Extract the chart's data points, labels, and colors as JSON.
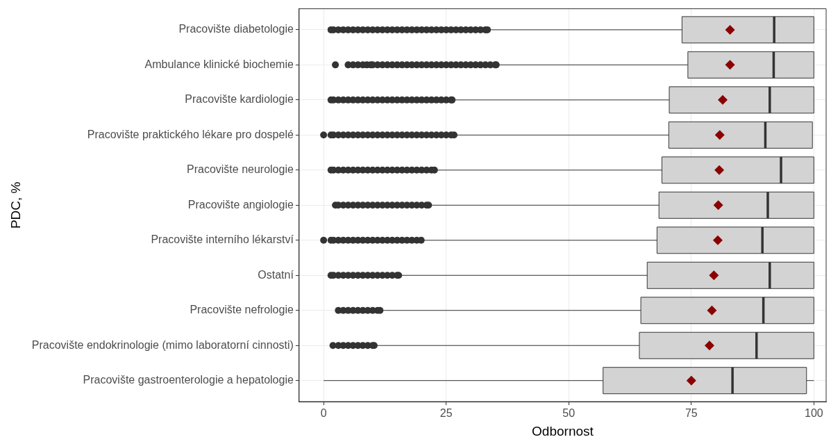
{
  "chart_data": {
    "type": "box",
    "orientation": "horizontal",
    "xlabel": "Odbornost",
    "ylabel": "PDC, %",
    "color": "#d3d3d3",
    "grid": true,
    "categories": [
      "Pracovište diabetologie",
      "Ambulance klinické biochemie",
      "Pracovište kardiologie",
      "Pracovište praktického lékare pro dospelé",
      "Pracovište neurologie",
      "Pracovište angiologie",
      "Pracovište interního lékarství",
      "Ostatní",
      "Pracovište nefrologie",
      "Pracovište endokrinologie (mimo laboratorní cinnosti)",
      "Pracovište gastroenterologie a hepatologie"
    ],
    "xlim": [
      -5,
      102.5
    ],
    "xticks": [
      0,
      25,
      50,
      75,
      100
    ],
    "boxes": [
      {
        "low": 33.8,
        "q1": 73.1,
        "median": 91.9,
        "q3": 100,
        "high": 100,
        "mean": 82.9,
        "outliers": [
          1.5,
          2,
          3,
          4,
          5,
          6,
          7,
          8,
          9,
          10,
          11,
          12,
          13,
          14,
          15,
          16,
          17,
          18,
          19,
          20,
          21,
          22,
          23,
          24,
          25,
          26,
          27,
          28,
          29,
          30,
          31,
          32,
          33,
          33.4
        ]
      },
      {
        "low": 35.5,
        "q1": 74.3,
        "median": 91.8,
        "q3": 100,
        "high": 100,
        "mean": 82.9,
        "outliers": [
          2.4,
          5,
          6,
          7,
          8,
          8.8,
          9.6,
          10,
          11,
          12,
          13,
          14,
          15,
          16,
          17,
          18,
          19,
          20,
          21,
          22,
          23,
          24,
          25,
          26,
          27,
          28,
          29,
          30,
          31,
          32,
          33,
          34,
          35,
          35.2
        ]
      },
      {
        "low": 26.5,
        "q1": 70.5,
        "median": 91.0,
        "q3": 100,
        "high": 100,
        "mean": 81.4,
        "outliers": [
          1.5,
          2,
          3,
          4,
          5,
          6,
          7,
          8,
          9,
          10,
          11,
          12,
          13,
          14,
          15,
          16,
          17,
          18,
          19,
          20,
          21,
          22,
          23,
          24,
          25,
          26,
          26.2
        ]
      },
      {
        "low": 27,
        "q1": 70.4,
        "median": 90.1,
        "q3": 99.7,
        "high": 99.7,
        "mean": 80.8,
        "outliers": [
          0,
          1.5,
          2,
          3,
          4,
          5,
          6,
          7,
          8,
          9,
          10,
          11,
          12,
          13,
          14,
          15,
          16,
          17,
          18,
          19,
          20,
          21,
          22,
          23,
          24,
          25,
          26,
          26.6
        ]
      },
      {
        "low": 23,
        "q1": 69.0,
        "median": 93.3,
        "q3": 100,
        "high": 100,
        "mean": 80.7,
        "outliers": [
          1.5,
          2,
          3,
          4,
          5,
          6,
          7,
          8,
          9,
          10,
          11,
          12,
          13,
          14,
          15,
          16,
          17,
          18,
          19,
          20,
          21,
          22,
          22.6
        ]
      },
      {
        "low": 21.7,
        "q1": 68.4,
        "median": 90.6,
        "q3": 100,
        "high": 100,
        "mean": 80.5,
        "outliers": [
          2.4,
          3,
          4,
          5,
          6,
          7,
          8,
          9,
          10,
          11,
          12,
          13,
          14,
          15,
          16,
          17,
          18,
          19,
          20,
          21,
          21.4
        ]
      },
      {
        "low": 20.2,
        "q1": 68.0,
        "median": 89.5,
        "q3": 100,
        "high": 100,
        "mean": 80.4,
        "outliers": [
          0,
          1.5,
          2,
          3,
          4,
          5,
          6,
          7,
          8,
          9,
          10,
          11,
          12,
          13,
          14,
          15,
          16,
          17,
          18,
          19,
          19.9
        ]
      },
      {
        "low": 15.6,
        "q1": 66.0,
        "median": 91.0,
        "q3": 100,
        "high": 100,
        "mean": 79.6,
        "outliers": [
          1.5,
          2,
          3,
          4,
          5,
          6,
          7,
          8,
          9,
          10,
          11,
          12,
          13,
          14,
          15,
          15.3
        ]
      },
      {
        "low": 11.8,
        "q1": 64.7,
        "median": 89.7,
        "q3": 100,
        "high": 100,
        "mean": 79.2,
        "outliers": [
          3,
          4,
          5,
          6,
          7,
          8,
          9,
          10,
          11,
          11.5
        ]
      },
      {
        "low": 10.6,
        "q1": 64.4,
        "median": 88.3,
        "q3": 100,
        "high": 100,
        "mean": 78.7,
        "outliers": [
          1.9,
          3,
          4,
          5,
          6,
          7,
          8,
          9,
          10,
          10.3
        ]
      },
      {
        "low": 0,
        "q1": 57.0,
        "median": 83.4,
        "q3": 98.5,
        "high": 100,
        "mean": 75.0
      }
    ]
  }
}
